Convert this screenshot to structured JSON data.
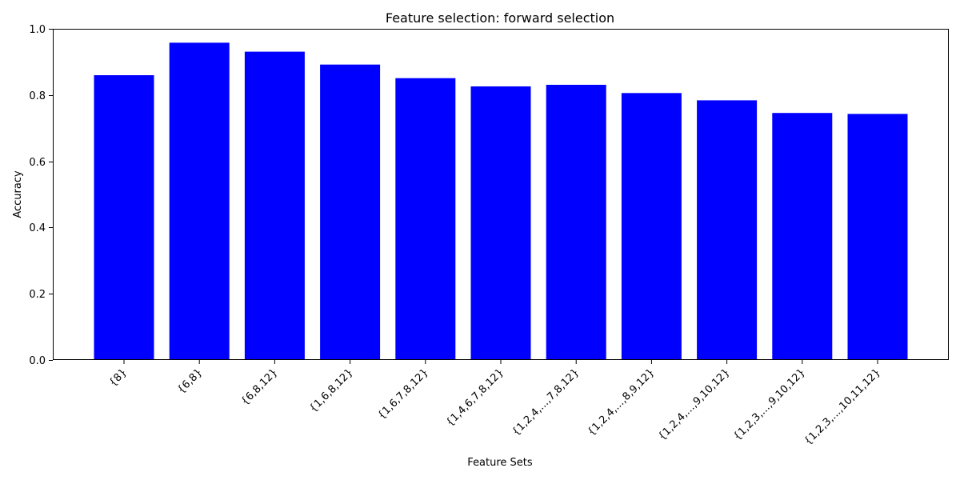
{
  "chart_data": {
    "type": "bar",
    "title": "Feature selection: forward selection",
    "xlabel": "Feature Sets",
    "ylabel": "Accuracy",
    "categories": [
      "{8}",
      "{6,8}",
      "{6,8,12}",
      "{1,6,8,12}",
      "{1,6,7,8,12}",
      "{1,4,6,7,8,12}",
      "{1,2,4,...,7,8,12}",
      "{1,2,4,...,8,9,12}",
      "{1,2,4,...,9,10,12}",
      "{1,2,3,...,9,10,12}",
      "{1,2,3,...,10,11,12}"
    ],
    "values": [
      0.86,
      0.958,
      0.931,
      0.892,
      0.851,
      0.826,
      0.831,
      0.806,
      0.784,
      0.746,
      0.743
    ],
    "ylim": [
      0,
      1.0
    ],
    "yticks": [
      0.0,
      0.2,
      0.4,
      0.6,
      0.8,
      1.0
    ],
    "ytick_labels": [
      "0.0",
      "0.2",
      "0.4",
      "0.6",
      "0.8",
      "1.0"
    ],
    "bar_color": "#0000ff",
    "grid": false,
    "legend": false
  }
}
